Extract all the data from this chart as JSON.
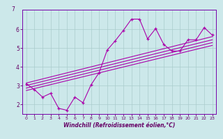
{
  "background_color": "#cce8ea",
  "line_color": "#aa00aa",
  "spine_color": "#7700aa",
  "grid_color": "#aacccc",
  "tick_color": "#660066",
  "xlabel": "Windchill (Refroidissement éolien,°C)",
  "xlim": [
    -0.5,
    23.5
  ],
  "ylim": [
    1.5,
    7.05
  ],
  "yticks": [
    2,
    3,
    4,
    5,
    6
  ],
  "xticks": [
    0,
    1,
    2,
    3,
    4,
    5,
    6,
    7,
    8,
    9,
    10,
    11,
    12,
    13,
    14,
    15,
    16,
    17,
    18,
    19,
    20,
    21,
    22,
    23
  ],
  "scatter_x": [
    0,
    1,
    2,
    3,
    4,
    5,
    6,
    7,
    8,
    9,
    10,
    11,
    12,
    13,
    14,
    15,
    16,
    17,
    18,
    19,
    20,
    21,
    22,
    23
  ],
  "scatter_y": [
    3.1,
    2.8,
    2.4,
    2.6,
    1.8,
    1.7,
    2.4,
    2.1,
    3.05,
    3.7,
    4.9,
    5.4,
    5.95,
    6.55,
    6.55,
    5.5,
    6.05,
    5.2,
    4.85,
    4.85,
    5.45,
    5.45,
    6.1,
    5.7
  ],
  "trend_lines": [
    {
      "x": [
        0,
        23
      ],
      "y": [
        2.75,
        5.15
      ]
    },
    {
      "x": [
        0,
        23
      ],
      "y": [
        2.88,
        5.3
      ]
    },
    {
      "x": [
        0,
        23
      ],
      "y": [
        3.02,
        5.45
      ]
    },
    {
      "x": [
        0,
        23
      ],
      "y": [
        3.15,
        5.62
      ]
    }
  ],
  "xlabel_fontsize": 5.5,
  "ytick_fontsize": 5.5,
  "xtick_fontsize": 4.5
}
